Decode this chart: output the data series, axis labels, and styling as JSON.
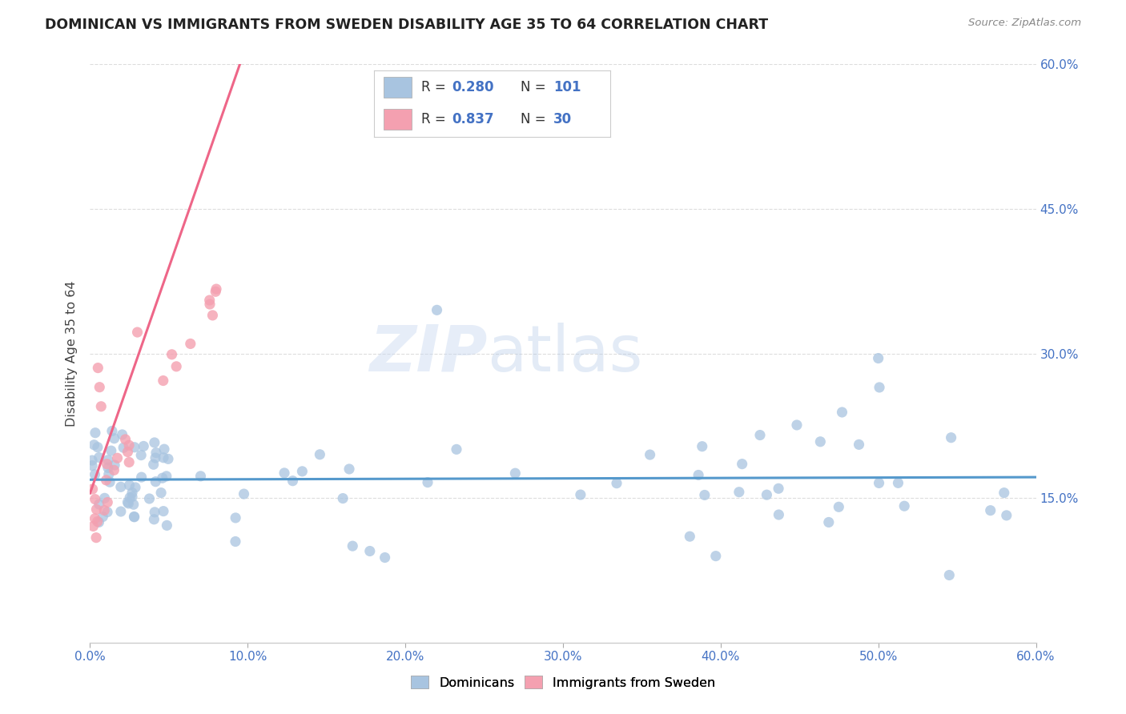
{
  "title": "DOMINICAN VS IMMIGRANTS FROM SWEDEN DISABILITY AGE 35 TO 64 CORRELATION CHART",
  "source": "Source: ZipAtlas.com",
  "ylabel": "Disability Age 35 to 64",
  "xlim": [
    0.0,
    0.6
  ],
  "ylim": [
    0.0,
    0.6
  ],
  "xticks": [
    0.0,
    0.1,
    0.2,
    0.3,
    0.4,
    0.5,
    0.6
  ],
  "yticks": [
    0.15,
    0.3,
    0.45,
    0.6
  ],
  "xticklabels": [
    "0.0%",
    "10.0%",
    "20.0%",
    "30.0%",
    "40.0%",
    "50.0%",
    "60.0%"
  ],
  "yticklabels_right": [
    "15.0%",
    "30.0%",
    "45.0%",
    "60.0%"
  ],
  "dominican_color": "#a8c4e0",
  "sweden_color": "#f4a0b0",
  "trendline_dominican_color": "#5599cc",
  "trendline_sweden_color": "#ee6688",
  "legend_R1": "0.280",
  "legend_N1": "101",
  "legend_R2": "0.837",
  "legend_N2": "30",
  "watermark_zip": "ZIP",
  "watermark_atlas": "atlas",
  "tick_color": "#4472c4",
  "title_color": "#222222",
  "source_color": "#888888",
  "ylabel_color": "#444444"
}
